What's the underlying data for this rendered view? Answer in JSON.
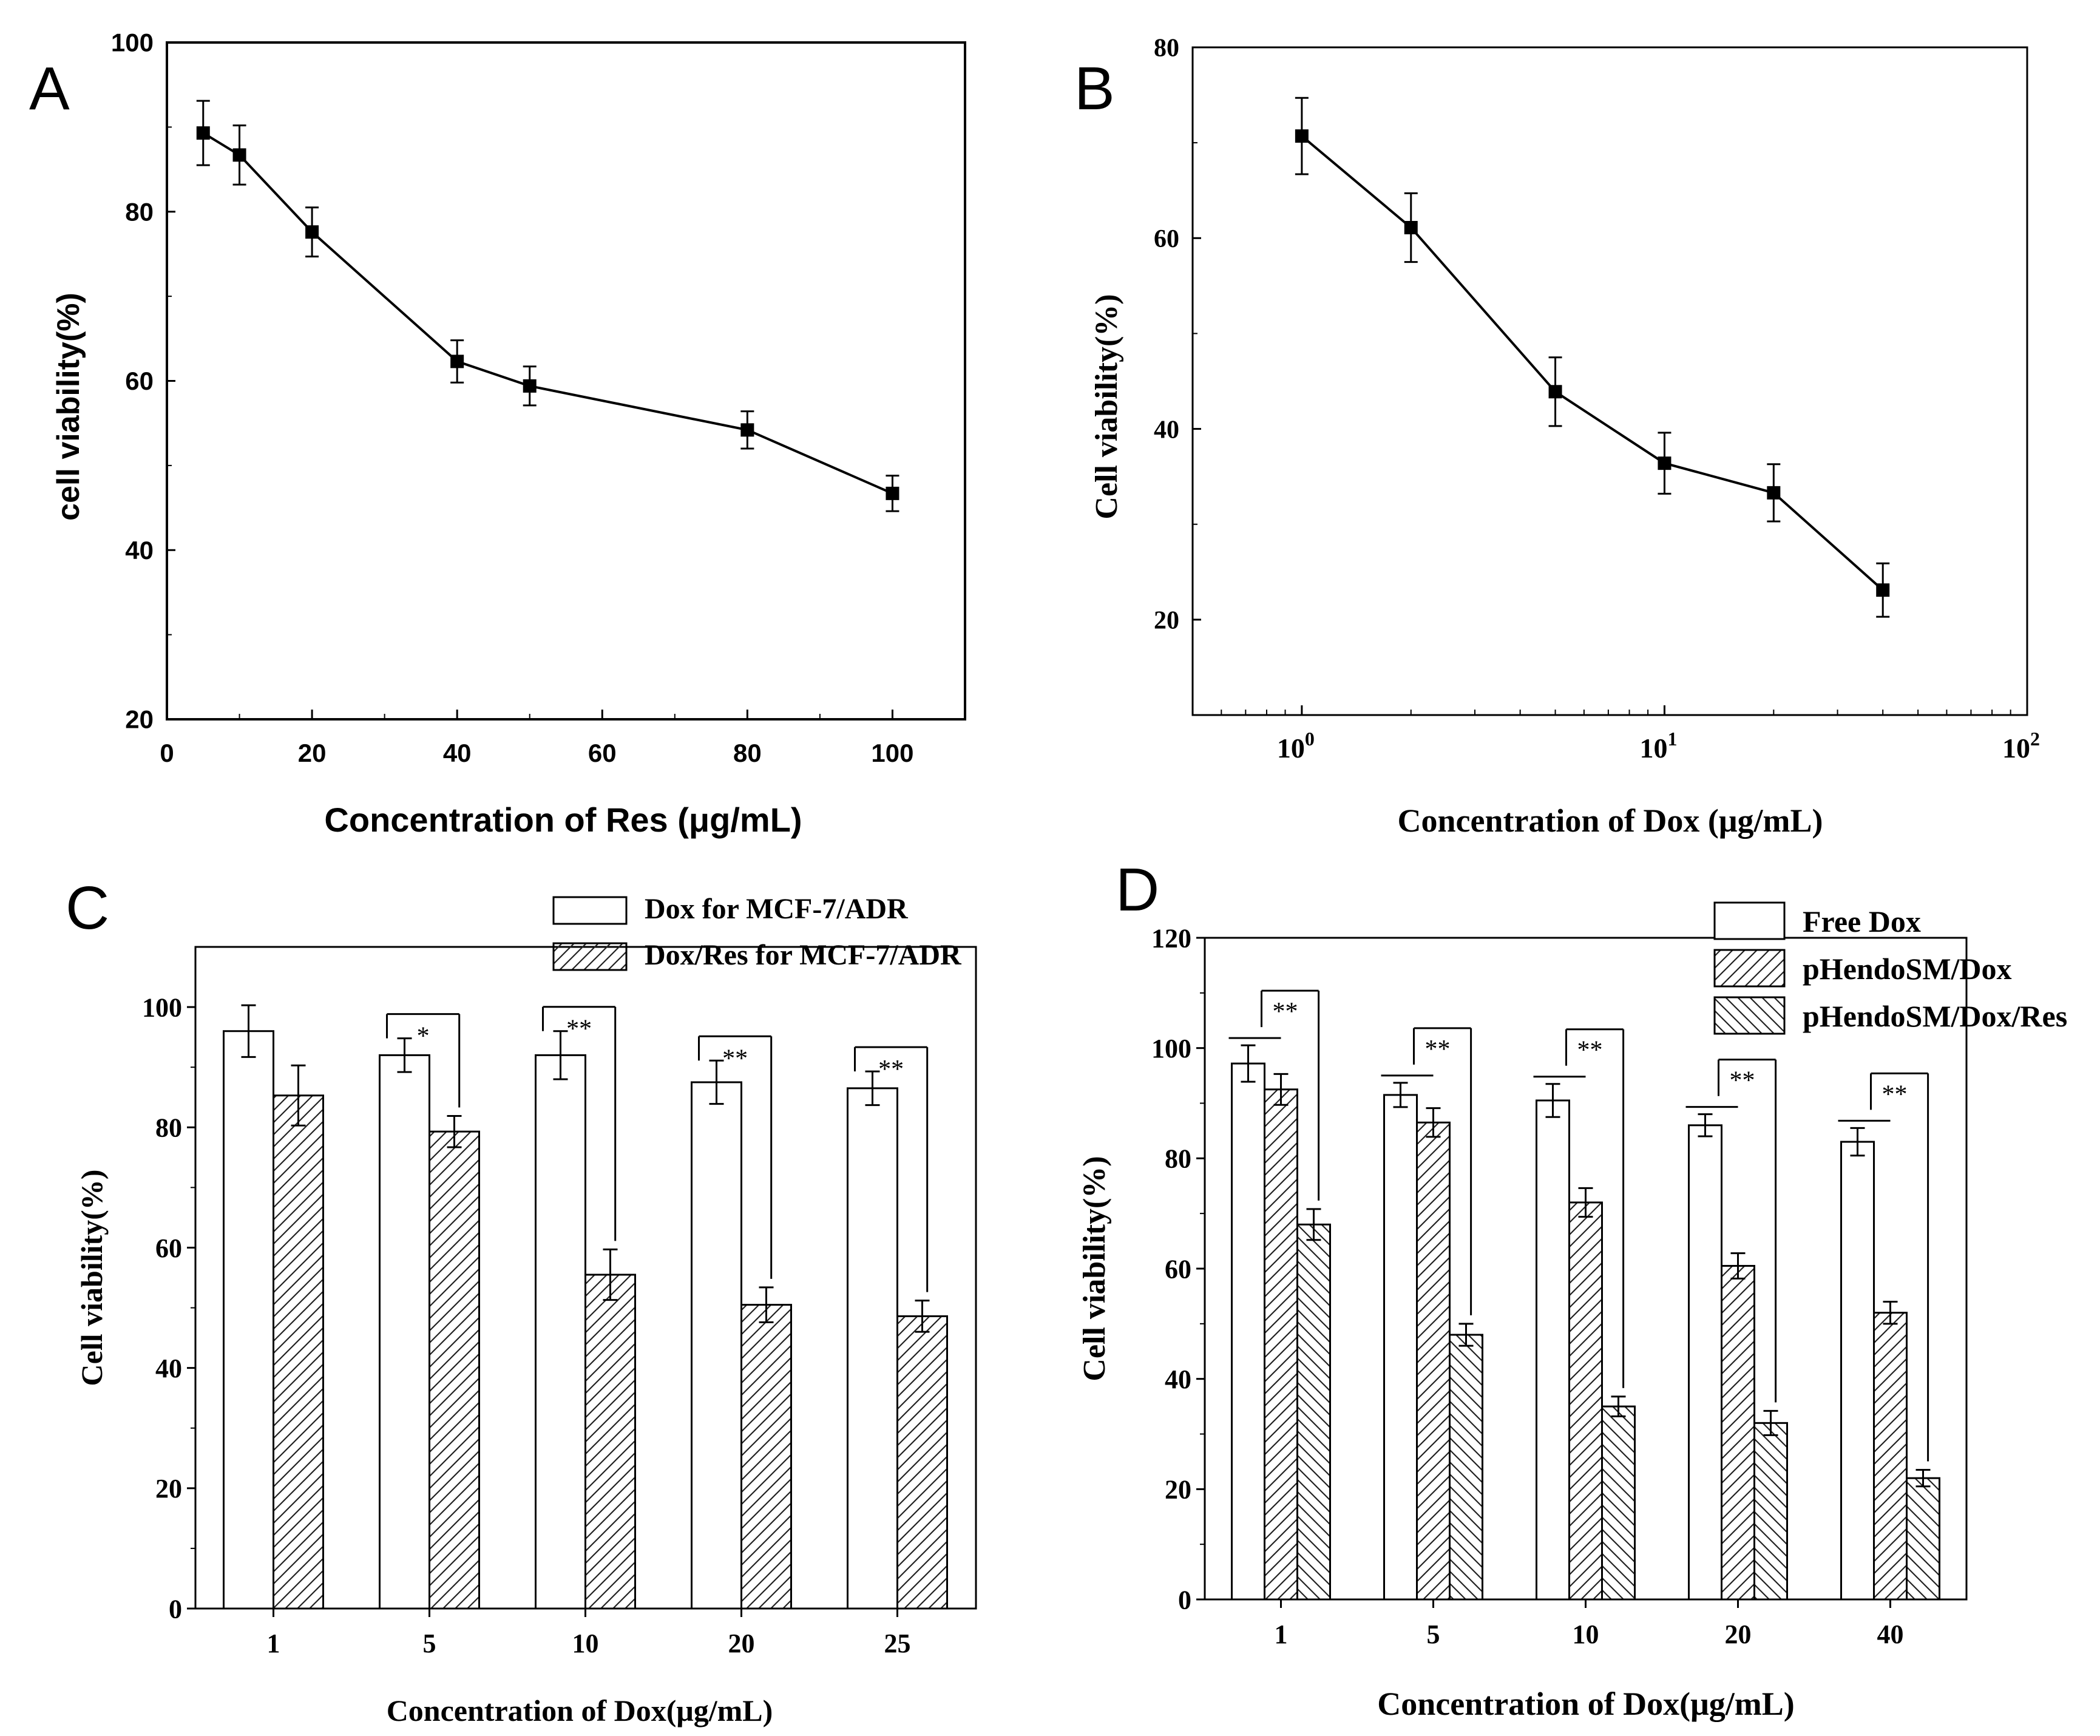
{
  "chart_data": [
    {
      "panel_label": "A",
      "type": "line",
      "font": "sans",
      "x_scale": "linear",
      "xlim": [
        0,
        110
      ],
      "ylim": [
        20,
        100
      ],
      "xticks": [
        0,
        20,
        40,
        60,
        80,
        100
      ],
      "xtick_labels": [
        "0",
        "20",
        "40",
        "60",
        "80",
        "100"
      ],
      "yticks": [
        20,
        40,
        60,
        80,
        100
      ],
      "ytick_labels": [
        "20",
        "40",
        "60",
        "80",
        "100"
      ],
      "xlabel": "Concentration of Res (μg/mL)",
      "ylabel": "cell viability(%)",
      "series": [
        {
          "name": "Res",
          "x": [
            5,
            10,
            20,
            40,
            50,
            80,
            100
          ],
          "y": [
            89.3,
            86.7,
            77.6,
            62.3,
            59.4,
            54.2,
            46.7
          ],
          "err": [
            3.8,
            3.5,
            2.9,
            2.5,
            2.3,
            2.2,
            2.1
          ]
        }
      ]
    },
    {
      "panel_label": "B",
      "type": "line",
      "font": "serif",
      "x_scale": "log",
      "xlim": [
        0.5,
        100
      ],
      "ylim": [
        10,
        80
      ],
      "xticks": [
        1,
        10,
        100
      ],
      "xtick_labels": [
        [
          "10",
          "0"
        ],
        [
          "10",
          "1"
        ],
        [
          "10",
          "2"
        ]
      ],
      "yticks": [
        20,
        40,
        60,
        80
      ],
      "ytick_labels": [
        "20",
        "40",
        "60",
        "80"
      ],
      "xlabel": "Concentration of Dox (μg/mL)",
      "ylabel": "Cell viability(%)",
      "series": [
        {
          "name": "Dox",
          "x": [
            1,
            2,
            5,
            10,
            20,
            40
          ],
          "y": [
            70.7,
            61.1,
            43.9,
            36.4,
            33.3,
            23.1
          ],
          "err": [
            4.0,
            3.6,
            3.6,
            3.2,
            3.0,
            2.8
          ]
        }
      ]
    },
    {
      "panel_label": "C",
      "type": "bar",
      "font": "serif",
      "ylim": [
        0,
        110
      ],
      "yticks": [
        0,
        20,
        40,
        60,
        80,
        100
      ],
      "ytick_labels": [
        "0",
        "20",
        "40",
        "60",
        "80",
        "100"
      ],
      "categories": [
        "1",
        "5",
        "10",
        "20",
        "25"
      ],
      "xlabel": "Concentration of Dox(μg/mL)",
      "ylabel": "Cell viability(%)",
      "legend_position": "top-right",
      "series": [
        {
          "name": "Dox for MCF-7/ADR",
          "pattern": "none",
          "values": [
            96,
            92,
            92,
            87.5,
            86.5
          ],
          "err": [
            4.3,
            2.8,
            4.0,
            3.6,
            2.8
          ]
        },
        {
          "name": "Dox/Res for MCF-7/ADR",
          "pattern": "hatch-forward",
          "values": [
            85.3,
            79.3,
            55.5,
            50.5,
            48.6
          ],
          "err": [
            5.0,
            2.6,
            4.2,
            2.9,
            2.6
          ]
        }
      ],
      "significance": [
        {
          "category_index": 1,
          "label": "*"
        },
        {
          "category_index": 2,
          "label": "**"
        },
        {
          "category_index": 3,
          "label": "**"
        },
        {
          "category_index": 4,
          "label": "**"
        }
      ]
    },
    {
      "panel_label": "D",
      "type": "bar",
      "font": "serif",
      "ylim": [
        0,
        120
      ],
      "yticks": [
        0,
        20,
        40,
        60,
        80,
        100,
        120
      ],
      "ytick_labels": [
        "0",
        "20",
        "40",
        "60",
        "80",
        "100",
        "120"
      ],
      "categories": [
        "1",
        "5",
        "10",
        "20",
        "40"
      ],
      "xlabel": "Concentration of Dox(μg/mL)",
      "ylabel": "Cell viability(%)",
      "legend_position": "top-right",
      "series": [
        {
          "name": "Free Dox",
          "pattern": "none",
          "values": [
            97.2,
            91.5,
            90.5,
            86.0,
            83.0
          ],
          "err": [
            3.3,
            2.2,
            3.0,
            2.0,
            2.5
          ]
        },
        {
          "name": "pHendoSM/Dox",
          "pattern": "hatch-forward",
          "values": [
            92.5,
            86.5,
            72.0,
            60.5,
            52.0
          ],
          "err": [
            2.8,
            2.6,
            2.6,
            2.3,
            2.0
          ]
        },
        {
          "name": "pHendoSM/Dox/Res",
          "pattern": "hatch-backward",
          "values": [
            68.0,
            48.0,
            35.0,
            32.0,
            22.0
          ],
          "err": [
            2.8,
            2.0,
            1.8,
            2.2,
            1.5
          ]
        }
      ],
      "significance": [
        {
          "category_index": 0,
          "label": "**"
        },
        {
          "category_index": 1,
          "label": "**"
        },
        {
          "category_index": 2,
          "label": "**"
        },
        {
          "category_index": 3,
          "label": "**"
        },
        {
          "category_index": 4,
          "label": "**"
        }
      ]
    }
  ]
}
